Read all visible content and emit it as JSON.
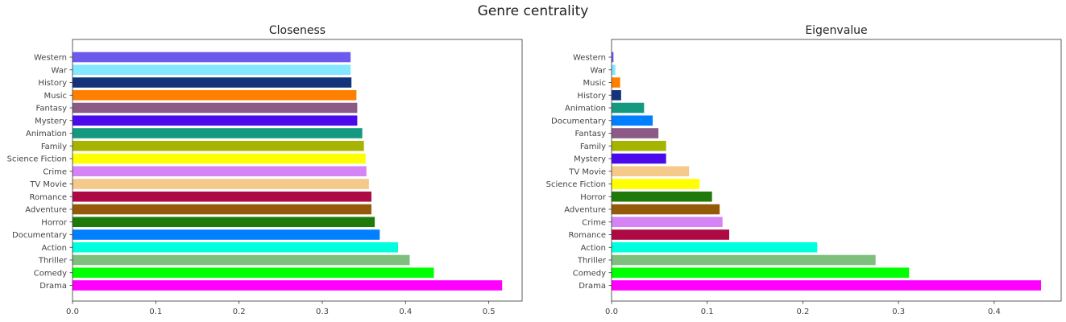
{
  "suptitle": "Genre centrality",
  "chart_data": [
    {
      "type": "bar",
      "orientation": "horizontal",
      "title": "Closeness",
      "xlim": [
        0,
        0.54
      ],
      "xticks": [
        0.0,
        0.1,
        0.2,
        0.3,
        0.4,
        0.5
      ],
      "xtick_labels": [
        "0.0",
        "0.1",
        "0.2",
        "0.3",
        "0.4",
        "0.5"
      ],
      "categories": [
        "Drama",
        "Comedy",
        "Thriller",
        "Action",
        "Documentary",
        "Horror",
        "Adventure",
        "Romance",
        "TV Movie",
        "Crime",
        "Science Fiction",
        "Family",
        "Animation",
        "Mystery",
        "Fantasy",
        "Music",
        "History",
        "War",
        "Western"
      ],
      "values": [
        0.516,
        0.434,
        0.405,
        0.391,
        0.369,
        0.363,
        0.359,
        0.359,
        0.356,
        0.353,
        0.352,
        0.35,
        0.348,
        0.342,
        0.342,
        0.341,
        0.335,
        0.334,
        0.334
      ],
      "colors": [
        "#ff00ff",
        "#00ff00",
        "#7ebf7e",
        "#00ffdd",
        "#0080ff",
        "#1f7a0a",
        "#945a0a",
        "#ad0a45",
        "#f5c98a",
        "#d484f5",
        "#ffff00",
        "#a6b300",
        "#139980",
        "#4a0aeb",
        "#8c5a87",
        "#ff8000",
        "#13337a",
        "#85e6ff",
        "#6b5aeb"
      ]
    },
    {
      "type": "bar",
      "orientation": "horizontal",
      "title": "Eigenvalue",
      "xlim": [
        0,
        0.47
      ],
      "xticks": [
        0.0,
        0.1,
        0.2,
        0.3,
        0.4
      ],
      "xtick_labels": [
        "0.0",
        "0.1",
        "0.2",
        "0.3",
        "0.4"
      ],
      "categories": [
        "Drama",
        "Comedy",
        "Thriller",
        "Action",
        "Romance",
        "Crime",
        "Adventure",
        "Horror",
        "Science Fiction",
        "TV Movie",
        "Mystery",
        "Family",
        "Fantasy",
        "Documentary",
        "Animation",
        "History",
        "Music",
        "War",
        "Western"
      ],
      "values": [
        0.449,
        0.311,
        0.276,
        0.215,
        0.123,
        0.116,
        0.113,
        0.105,
        0.092,
        0.081,
        0.057,
        0.057,
        0.049,
        0.043,
        0.034,
        0.01,
        0.009,
        0.004,
        0.002
      ],
      "colors": [
        "#ff00ff",
        "#00ff00",
        "#7ebf7e",
        "#00ffdd",
        "#ad0a45",
        "#d484f5",
        "#945a0a",
        "#1f7a0a",
        "#ffff00",
        "#f5c98a",
        "#4a0aeb",
        "#a6b300",
        "#8c5a87",
        "#0080ff",
        "#139980",
        "#13337a",
        "#ff8000",
        "#85e6ff",
        "#6b5aeb"
      ]
    }
  ]
}
